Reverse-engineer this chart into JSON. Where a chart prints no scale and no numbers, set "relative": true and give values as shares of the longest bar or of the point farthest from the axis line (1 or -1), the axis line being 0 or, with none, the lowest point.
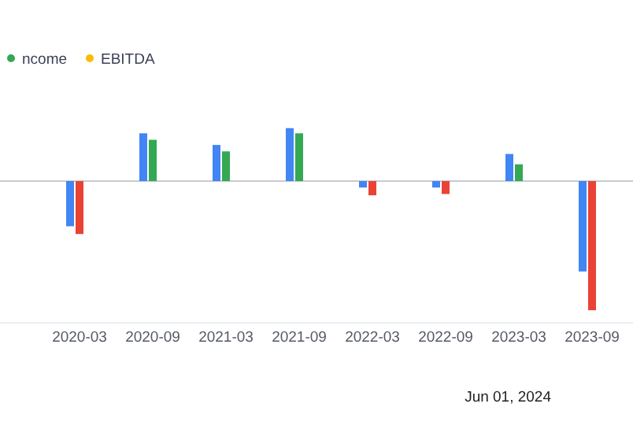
{
  "chart_data": {
    "type": "bar",
    "relative": true,
    "legend": "top left",
    "categories": [
      null,
      "2020-03",
      "2020-09",
      "2021-03",
      "2021-09",
      "2022-03",
      "2022-09",
      "2023-03",
      "2023-09"
    ],
    "series": [
      {
        "color": "#4285f4",
        "values": [
          null,
          -0.35,
          0.37,
          0.28,
          0.41,
          -0.05,
          -0.05,
          0.21,
          -0.7
        ]
      },
      {
        "name": "ncome",
        "color": "#34a853",
        "colors": [
          null,
          "#ea4335",
          "#34a853",
          "#34a853",
          "#34a853",
          "#ea4335",
          "#ea4335",
          "#34a853",
          "#ea4335"
        ],
        "values": [
          null,
          -0.41,
          0.32,
          0.23,
          0.37,
          -0.11,
          -0.1,
          0.13,
          -1
        ]
      },
      {
        "name": "EBITDA",
        "color": "#fbbc04",
        "values": [
          null,
          null,
          null,
          null,
          null,
          null,
          null,
          null,
          null
        ]
      }
    ],
    "annotations": [
      "Jun 01, 2024"
    ]
  }
}
